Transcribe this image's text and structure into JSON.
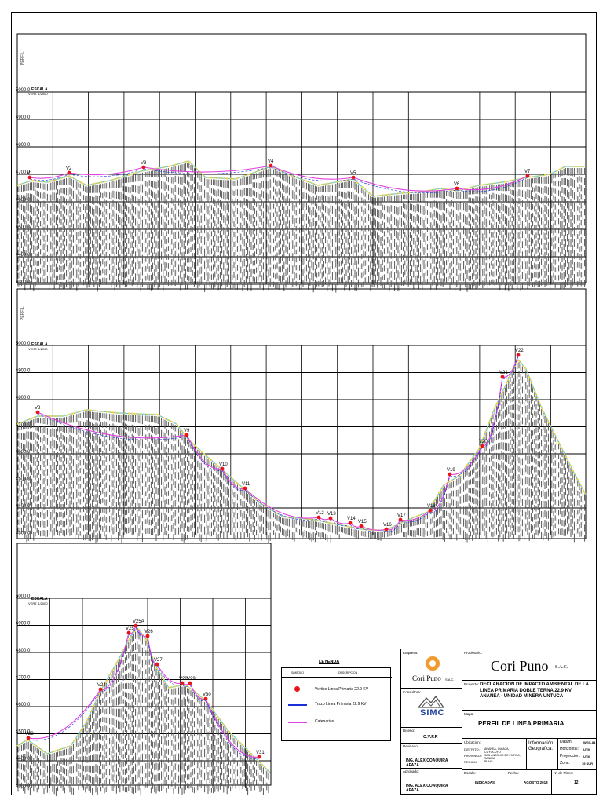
{
  "profiles": [
    {
      "axis_title": "ESCALA",
      "axis_sub": "VERT. 1/2000",
      "side_label": "PERFIL",
      "elevations": [
        "5000.0",
        "4900.0",
        "4800.0",
        "4700.0",
        "4600.0",
        "4500.0",
        "4400.0",
        "4300.0"
      ],
      "vertices": [
        "V1",
        "V2",
        "V3",
        "V4",
        "V5",
        "V6",
        "V7"
      ]
    },
    {
      "axis_title": "ESCALA",
      "axis_sub": "VERT. 1/2000",
      "side_label": "PERFIL",
      "elevations": [
        "5000.0",
        "4900.0",
        "4800.0",
        "4700.0",
        "4600.0",
        "4500.0",
        "4400.0",
        "4300.0"
      ],
      "vertices": [
        "V8",
        "V9",
        "V10",
        "V11",
        "V12",
        "V13",
        "V14",
        "V15",
        "V16",
        "V17",
        "V18",
        "V19",
        "V20",
        "V21",
        "V22"
      ]
    },
    {
      "axis_title": "ESCALA",
      "axis_sub": "VERT. 1/2000",
      "elevations": [
        "5000.0",
        "4900.0",
        "4800.0",
        "4700.0",
        "4600.0",
        "4500.0",
        "4400.0",
        "4300.0"
      ],
      "vertices": [
        "V23",
        "V24",
        "V25",
        "V25A",
        "V26",
        "V27",
        "V28",
        "V29",
        "V30",
        "V31"
      ]
    }
  ],
  "legend": {
    "title": "LEYENDA",
    "col_symbol": "SIMBOLO",
    "col_desc": "DESCRIPCION",
    "items": [
      {
        "label": "Vertice Linea Primaria 22.9 KV",
        "color": "#e8141c"
      },
      {
        "label": "Trazo Linea Primaria 22.9 KV",
        "color": "#1a2fd6"
      },
      {
        "label": "Catenarias",
        "color": "#e040e0"
      }
    ]
  },
  "titleblock": {
    "empresa_label": "Empresa:",
    "empresa_name": "Cori Puno",
    "empresa_suffix": "S.A.C.",
    "propietario_label": "Propietario:",
    "propietario_name": "Cori Puno",
    "propietario_suffix": "S.A.C.",
    "proyecto_label": "Proyecto:",
    "proyecto_text": "DECLARACION DE IMPACTO AMBIENTAL DE LA LINEA PRIMARIA DOBLE TERNA 22.9 KV ANANEA - UNIDAD MINERA UNTUCA",
    "consultora_label": "Consultora:",
    "consultora_name": "SIMC",
    "mapa_label": "Mapa:",
    "mapa_title": "PERFIL DE LINEA PRIMARIA",
    "diseno_label": "Diseño:",
    "diseno_value": "C.V.P.R",
    "revisado_label": "Revisado:",
    "revisado_value": "ING. ALEX COAQUIRA APAZA",
    "aprobado_label": "Aprobado:",
    "aprobado_value": "ING. ALEX COAQUIRA APAZA",
    "ubicacion_label": "Ubicación:",
    "ubic_rows": [
      [
        "DISTRITO:",
        "ANANEA, QUIACA, CUYOCUYO"
      ],
      [
        "PROVINCIA:",
        "SAN ANTONIO DE PUTINA, SANDIA"
      ],
      [
        "REGION:",
        "PUNO"
      ]
    ],
    "info_label": "Información Geográfica:",
    "datum_label": "Datum:",
    "datum_value": "WGS-84",
    "horizontal_label": "Horizontal:",
    "horizontal_value": "UTM",
    "proyeccion_label": "Proyección:",
    "proyeccion_value": "UTM",
    "zona_label": "Zona:",
    "zona_value": "19 SUR",
    "escala_label": "Escala:",
    "escala_value": "INDICADAS",
    "fecha_label": "Fecha:",
    "fecha_value": "AGOSTO 2013",
    "plano_label": "N° de Plano:",
    "plano_value": "12"
  }
}
